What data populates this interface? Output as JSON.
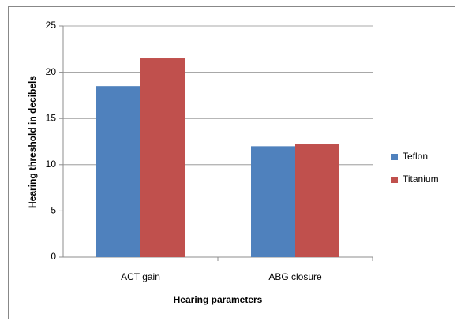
{
  "chart_data": {
    "type": "bar",
    "x_label": "Hearing parameters",
    "y_label": "Hearing threshold in decibels",
    "categories": [
      "ACT gain",
      "ABG closure"
    ],
    "series": [
      {
        "name": "Teflon",
        "color": "#4f81bd",
        "values": [
          18.5,
          12
        ]
      },
      {
        "name": "Titanium",
        "color": "#c0504d",
        "values": [
          21.5,
          12.2
        ]
      }
    ],
    "ylim": [
      0,
      25
    ],
    "yticks": [
      0,
      5,
      10,
      15,
      20,
      25
    ],
    "grid": true,
    "legend": "right"
  }
}
